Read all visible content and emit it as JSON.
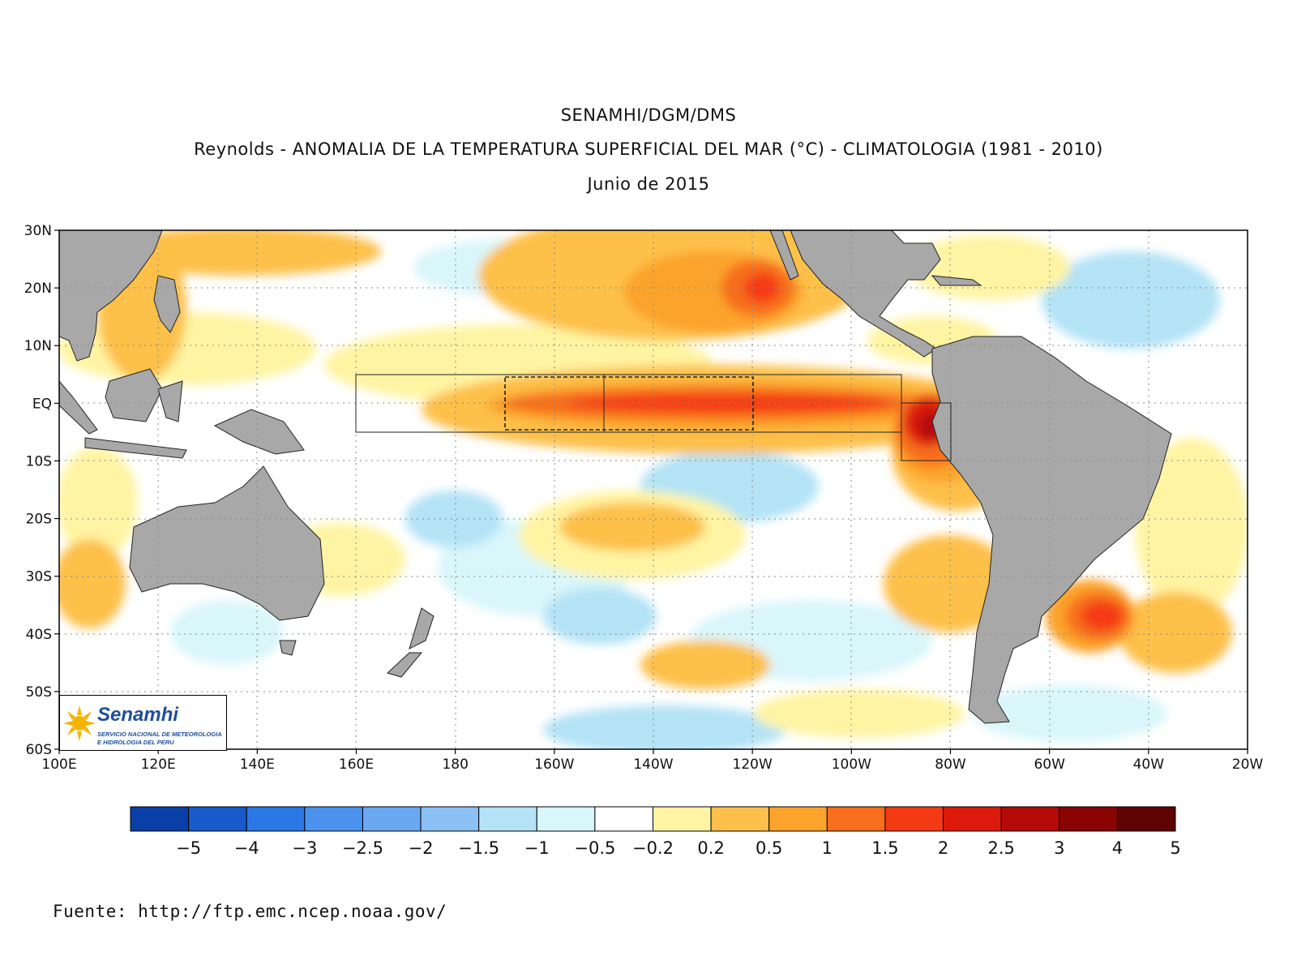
{
  "header": {
    "line1": "SENAMHI/DGM/DMS",
    "line2": "Reynolds - ANOMALIA DE LA TEMPERATURA SUPERFICIAL DEL MAR (°C) - CLIMATOLOGIA (1981 - 2010)",
    "line3": "Junio de 2015"
  },
  "map": {
    "lat_labels": [
      "30N",
      "20N",
      "10N",
      "EQ",
      "10S",
      "20S",
      "30S",
      "40S",
      "50S",
      "60S"
    ],
    "lon_labels": [
      "100E",
      "120E",
      "140E",
      "160E",
      "180",
      "160W",
      "140W",
      "120W",
      "100W",
      "80W",
      "60W",
      "40W",
      "20W"
    ],
    "land_color": "#a8a8a8",
    "regions": [
      "Niño 4",
      "Niño 3.4",
      "Niño 3",
      "Niño 1+2"
    ]
  },
  "colorbar": {
    "colors": [
      "#0a3fa8",
      "#1859cc",
      "#2a78e6",
      "#4a92ee",
      "#6aa8f2",
      "#8cc0f5",
      "#b3e3f5",
      "#d9f6fb",
      "#ffffff",
      "#fff4a3",
      "#fdc04a",
      "#fba32a",
      "#f76e1c",
      "#f43a12",
      "#dc1a0c",
      "#b40a08",
      "#8a0404",
      "#5e0202"
    ],
    "labels": [
      "-5",
      "-4",
      "-3",
      "-2.5",
      "-2",
      "-1.5",
      "-1",
      "-0.5",
      "-0.2",
      "0.2",
      "0.5",
      "1",
      "1.5",
      "2",
      "2.5",
      "3",
      "4",
      "5"
    ]
  },
  "logo": {
    "name": "Senamhi",
    "sub1": "SERVICIO NACIONAL DE METEOROLOGIA",
    "sub2": "E HIDROLOGIA DEL PERU"
  },
  "footer": {
    "source": "Fuente: http://ftp.emc.ncep.noaa.gov/"
  }
}
